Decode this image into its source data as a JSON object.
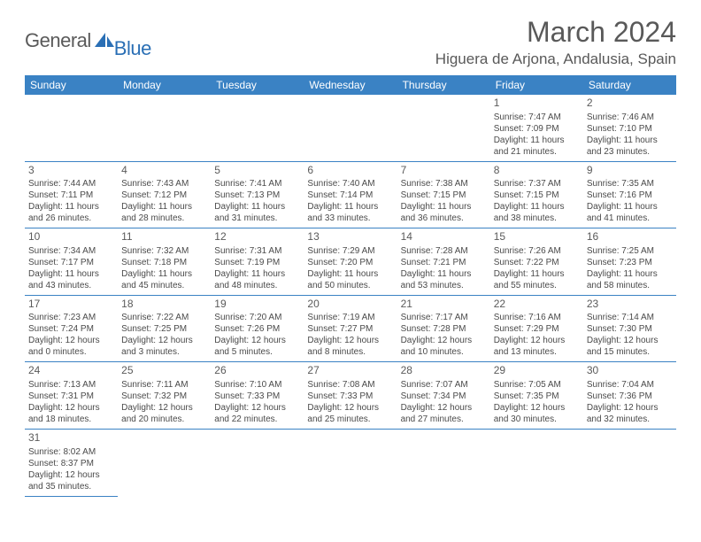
{
  "logo": {
    "text1": "General",
    "text2": "Blue",
    "sail_color": "#2a6fb5",
    "text1_color": "#5a5a5a"
  },
  "title": "March 2024",
  "location": "Higuera de Arjona, Andalusia, Spain",
  "header_bg": "#3a82c4",
  "header_fg": "#ffffff",
  "cell_border": "#3a82c4",
  "text_color": "#4a4a4a",
  "weekdays": [
    "Sunday",
    "Monday",
    "Tuesday",
    "Wednesday",
    "Thursday",
    "Friday",
    "Saturday"
  ],
  "weeks": [
    [
      null,
      null,
      null,
      null,
      null,
      {
        "n": "1",
        "sr": "7:47 AM",
        "ss": "7:09 PM",
        "dl": "11 hours and 21 minutes."
      },
      {
        "n": "2",
        "sr": "7:46 AM",
        "ss": "7:10 PM",
        "dl": "11 hours and 23 minutes."
      }
    ],
    [
      {
        "n": "3",
        "sr": "7:44 AM",
        "ss": "7:11 PM",
        "dl": "11 hours and 26 minutes."
      },
      {
        "n": "4",
        "sr": "7:43 AM",
        "ss": "7:12 PM",
        "dl": "11 hours and 28 minutes."
      },
      {
        "n": "5",
        "sr": "7:41 AM",
        "ss": "7:13 PM",
        "dl": "11 hours and 31 minutes."
      },
      {
        "n": "6",
        "sr": "7:40 AM",
        "ss": "7:14 PM",
        "dl": "11 hours and 33 minutes."
      },
      {
        "n": "7",
        "sr": "7:38 AM",
        "ss": "7:15 PM",
        "dl": "11 hours and 36 minutes."
      },
      {
        "n": "8",
        "sr": "7:37 AM",
        "ss": "7:15 PM",
        "dl": "11 hours and 38 minutes."
      },
      {
        "n": "9",
        "sr": "7:35 AM",
        "ss": "7:16 PM",
        "dl": "11 hours and 41 minutes."
      }
    ],
    [
      {
        "n": "10",
        "sr": "7:34 AM",
        "ss": "7:17 PM",
        "dl": "11 hours and 43 minutes."
      },
      {
        "n": "11",
        "sr": "7:32 AM",
        "ss": "7:18 PM",
        "dl": "11 hours and 45 minutes."
      },
      {
        "n": "12",
        "sr": "7:31 AM",
        "ss": "7:19 PM",
        "dl": "11 hours and 48 minutes."
      },
      {
        "n": "13",
        "sr": "7:29 AM",
        "ss": "7:20 PM",
        "dl": "11 hours and 50 minutes."
      },
      {
        "n": "14",
        "sr": "7:28 AM",
        "ss": "7:21 PM",
        "dl": "11 hours and 53 minutes."
      },
      {
        "n": "15",
        "sr": "7:26 AM",
        "ss": "7:22 PM",
        "dl": "11 hours and 55 minutes."
      },
      {
        "n": "16",
        "sr": "7:25 AM",
        "ss": "7:23 PM",
        "dl": "11 hours and 58 minutes."
      }
    ],
    [
      {
        "n": "17",
        "sr": "7:23 AM",
        "ss": "7:24 PM",
        "dl": "12 hours and 0 minutes."
      },
      {
        "n": "18",
        "sr": "7:22 AM",
        "ss": "7:25 PM",
        "dl": "12 hours and 3 minutes."
      },
      {
        "n": "19",
        "sr": "7:20 AM",
        "ss": "7:26 PM",
        "dl": "12 hours and 5 minutes."
      },
      {
        "n": "20",
        "sr": "7:19 AM",
        "ss": "7:27 PM",
        "dl": "12 hours and 8 minutes."
      },
      {
        "n": "21",
        "sr": "7:17 AM",
        "ss": "7:28 PM",
        "dl": "12 hours and 10 minutes."
      },
      {
        "n": "22",
        "sr": "7:16 AM",
        "ss": "7:29 PM",
        "dl": "12 hours and 13 minutes."
      },
      {
        "n": "23",
        "sr": "7:14 AM",
        "ss": "7:30 PM",
        "dl": "12 hours and 15 minutes."
      }
    ],
    [
      {
        "n": "24",
        "sr": "7:13 AM",
        "ss": "7:31 PM",
        "dl": "12 hours and 18 minutes."
      },
      {
        "n": "25",
        "sr": "7:11 AM",
        "ss": "7:32 PM",
        "dl": "12 hours and 20 minutes."
      },
      {
        "n": "26",
        "sr": "7:10 AM",
        "ss": "7:33 PM",
        "dl": "12 hours and 22 minutes."
      },
      {
        "n": "27",
        "sr": "7:08 AM",
        "ss": "7:33 PM",
        "dl": "12 hours and 25 minutes."
      },
      {
        "n": "28",
        "sr": "7:07 AM",
        "ss": "7:34 PM",
        "dl": "12 hours and 27 minutes."
      },
      {
        "n": "29",
        "sr": "7:05 AM",
        "ss": "7:35 PM",
        "dl": "12 hours and 30 minutes."
      },
      {
        "n": "30",
        "sr": "7:04 AM",
        "ss": "7:36 PM",
        "dl": "12 hours and 32 minutes."
      }
    ],
    [
      {
        "n": "31",
        "sr": "8:02 AM",
        "ss": "8:37 PM",
        "dl": "12 hours and 35 minutes."
      },
      null,
      null,
      null,
      null,
      null,
      null
    ]
  ],
  "labels": {
    "sunrise": "Sunrise:",
    "sunset": "Sunset:",
    "daylight": "Daylight:"
  }
}
